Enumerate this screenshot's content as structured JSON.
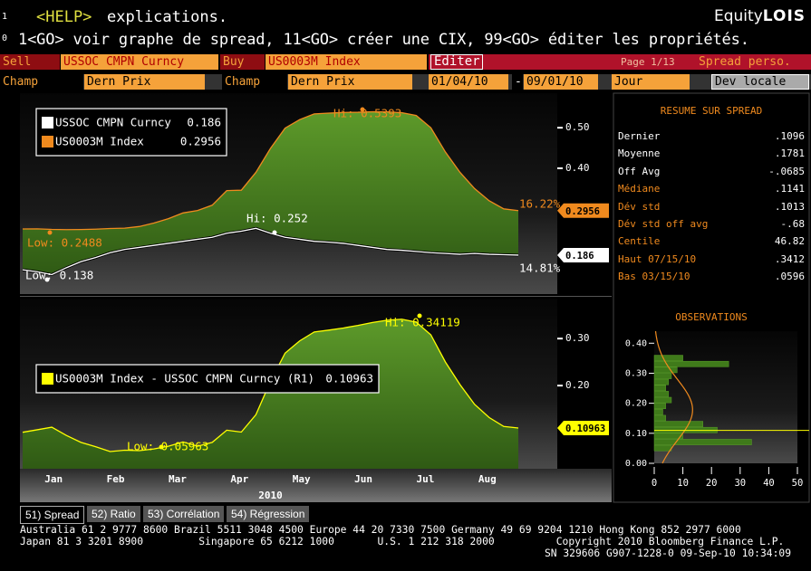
{
  "header": {
    "edge": [
      "1",
      "0"
    ],
    "help_key": "<HELP>",
    "help_text": "explications.",
    "brand_1": "Equity",
    "brand_2": "LOIS",
    "commands": "1<GO> voir graphe de spread, 11<GO> créer une CIX, 99<GO> éditer les propriétés."
  },
  "toolbar": {
    "sell": "Sell",
    "sell_ticker": "USSOC CMPN Curncy",
    "buy": "Buy",
    "buy_ticker": "US0003M Index",
    "edit": "Editer",
    "page": "Page 1/13",
    "mode": "Spread perso.",
    "field_1": "Champ",
    "field_1_value": "Dern Prix",
    "field_2": "Champ",
    "field_2_value": "Dern Prix",
    "start": "01/04/10",
    "dash": "-",
    "end": "09/01/10",
    "period": "Jour",
    "currency": "Dev locale"
  },
  "chart_data": [
    {
      "type": "line",
      "series": [
        {
          "name": "USSOC CMPN Curncy",
          "color": "#ffffff",
          "values": [
            0.15,
            0.145,
            0.138,
            0.155,
            0.17,
            0.18,
            0.192,
            0.2,
            0.205,
            0.21,
            0.215,
            0.22,
            0.225,
            0.23,
            0.24,
            0.245,
            0.252,
            0.24,
            0.23,
            0.225,
            0.22,
            0.218,
            0.215,
            0.21,
            0.205,
            0.2,
            0.198,
            0.195,
            0.192,
            0.19,
            0.188,
            0.19,
            0.188,
            0.187,
            0.186
          ]
        },
        {
          "name": "US0003M Index",
          "color": "#f08a1e",
          "values": [
            0.2506,
            0.2509,
            0.2494,
            0.2488,
            0.2491,
            0.25,
            0.2516,
            0.2525,
            0.2565,
            0.2651,
            0.2759,
            0.29,
            0.296,
            0.309,
            0.345,
            0.346,
            0.39,
            0.449,
            0.499,
            0.52,
            0.534,
            0.536,
            0.5375,
            0.538,
            0.5393,
            0.539,
            0.537,
            0.53,
            0.5,
            0.44,
            0.39,
            0.35,
            0.32,
            0.3,
            0.2956
          ]
        }
      ],
      "fill": "#4f8a22",
      "ylim": [
        0.09,
        0.585
      ],
      "yticks": [
        {
          "value": 0.5,
          "label": "0.50"
        },
        {
          "value": 0.4,
          "label": "0.40"
        }
      ],
      "annotations": [
        "Hi: 0.5393",
        "Low: 0.2488",
        "Hi: 0.252",
        "Low: 0.138",
        "16.22%",
        "14.81%"
      ]
    },
    {
      "type": "area",
      "series": [
        {
          "name": "US0003M Index - USSOC CMPN Curncy (R1)",
          "color": "#ffff00",
          "values": [
            0.1006,
            0.1059,
            0.1114,
            0.0938,
            0.0791,
            0.07,
            0.0596,
            0.0625,
            0.0615,
            0.0651,
            0.0709,
            0.08,
            0.071,
            0.079,
            0.105,
            0.101,
            0.138,
            0.209,
            0.269,
            0.295,
            0.314,
            0.318,
            0.3225,
            0.328,
            0.3343,
            0.339,
            0.3412,
            0.335,
            0.308,
            0.25,
            0.202,
            0.16,
            0.132,
            0.113,
            0.10963
          ]
        }
      ],
      "fill": "#4f8a22",
      "ylim": [
        0.023,
        0.385
      ],
      "yticks": [
        {
          "value": 0.3,
          "label": "0.30"
        },
        {
          "value": 0.2,
          "label": "0.20"
        }
      ],
      "annotations": [
        "Hi: 0.34119",
        "Low: 0.05963"
      ],
      "x_labels": [
        "Jan",
        "Feb",
        "Mar",
        "Apr",
        "May",
        "Jun",
        "Jul",
        "Aug"
      ],
      "x_title": "2010"
    },
    {
      "type": "histogram",
      "title": "OBSERVATIONS",
      "color": "#3f7a1a",
      "curve_color": "#f08a1e",
      "bins": [
        0.04,
        0.06,
        0.08,
        0.1,
        0.12,
        0.14,
        0.16,
        0.18,
        0.2,
        0.22,
        0.24,
        0.26,
        0.28,
        0.3,
        0.32,
        0.34,
        0.36
      ],
      "counts": [
        6,
        34,
        10,
        22,
        17,
        4,
        3,
        4,
        6,
        5,
        4,
        5,
        6,
        8,
        26,
        10
      ],
      "ylim": [
        0,
        0.44
      ],
      "yticks": [
        {
          "value": 0.4,
          "label": "0.40"
        },
        {
          "value": 0.3,
          "label": "0.30"
        },
        {
          "value": 0.2,
          "label": "0.20"
        },
        {
          "value": 0.1,
          "label": "0.10"
        },
        {
          "value": 0,
          "label": "0.00"
        }
      ],
      "xlim": [
        0,
        50
      ],
      "xticks": [
        0,
        10,
        20,
        30,
        40,
        50
      ]
    }
  ],
  "summary": {
    "title": "RESUME SUR SPREAD",
    "rows": [
      [
        "Dernier",
        ".1096"
      ],
      [
        "Moyenne",
        ".1781"
      ],
      [
        "Off Avg",
        "-.0685"
      ],
      [
        "Médiane",
        ".1141"
      ],
      [
        "Dév std",
        ".1013"
      ],
      [
        "Dév std off avg",
        "-.68"
      ],
      [
        "Centile",
        "46.82"
      ],
      [
        "Haut 07/15/10",
        ".3412"
      ],
      [
        "Bas 03/15/10",
        ".0596"
      ]
    ]
  },
  "tabs": [
    "51) Spread",
    "52) Ratio",
    "53) Corrélation",
    "54) Régression"
  ],
  "footer": [
    "Australia 61 2 9777 8600 Brazil 5511 3048 4500 Europe 44 20 7330 7500 Germany 49 69 9204 1210 Hong Kong 852 2977 6000",
    "Japan 81 3 3201 8900         Singapore 65 6212 1000       U.S. 1 212 318 2000          Copyright 2010 Bloomberg Finance L.P.",
    "SN 329606 G907-1228-0 09-Sep-10 10:34:09"
  ]
}
